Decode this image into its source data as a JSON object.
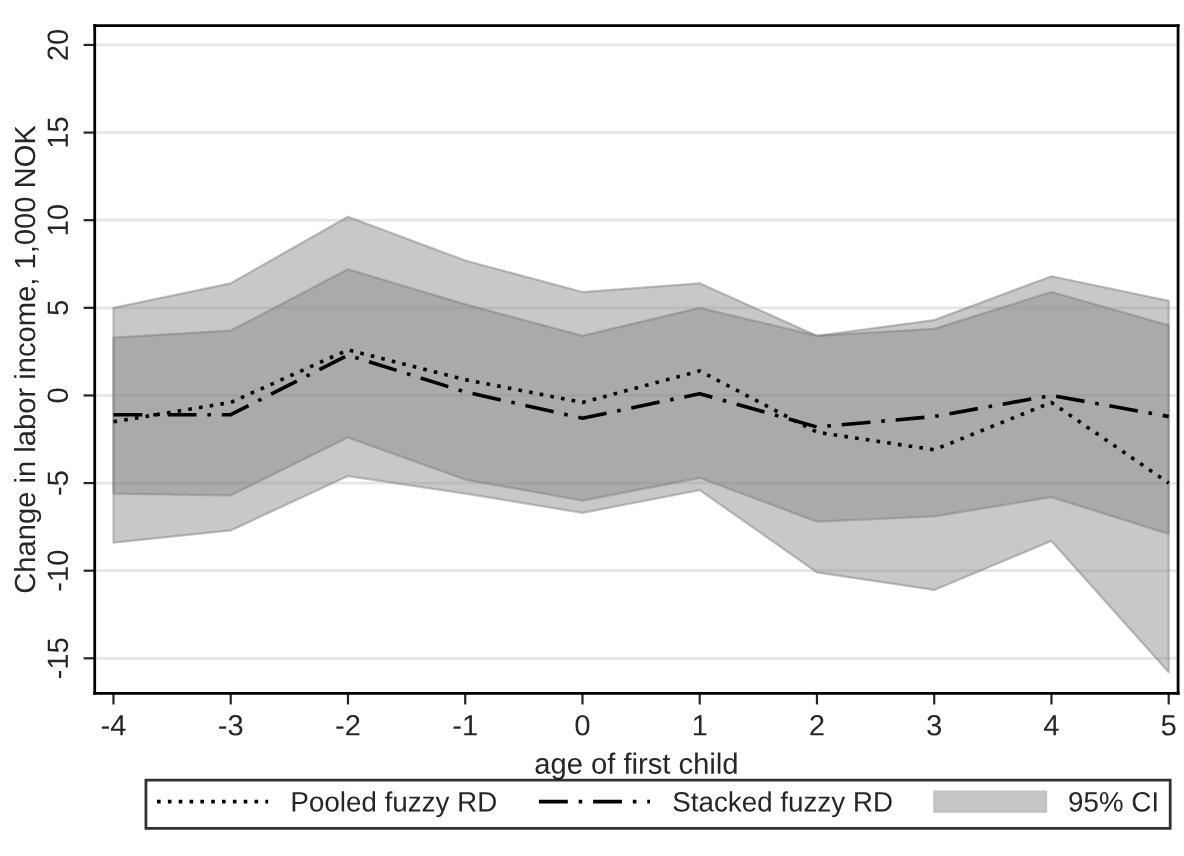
{
  "chart_data": {
    "type": "line",
    "xlabel": "age of first child",
    "ylabel": "Change in labor income, 1,000 NOK",
    "x": [
      -4,
      -3,
      -2,
      -1,
      0,
      1,
      2,
      3,
      4,
      5
    ],
    "series": [
      {
        "name": "Pooled fuzzy RD",
        "color": "#000000",
        "line_style": "dotted",
        "values": [
          -1.5,
          -0.4,
          2.6,
          0.9,
          -0.4,
          1.4,
          -2.1,
          -3.1,
          -0.4,
          -5.0
        ],
        "lower": [
          -8.4,
          -7.7,
          -4.6,
          -5.6,
          -6.7,
          -5.4,
          -10.1,
          -11.1,
          -8.3,
          -15.8
        ],
        "upper": [
          5.0,
          6.4,
          10.2,
          7.7,
          5.9,
          6.4,
          3.4,
          4.3,
          6.8,
          5.4
        ]
      },
      {
        "name": "Stacked fuzzy RD",
        "color": "#000000",
        "line_style": "dashdot",
        "values": [
          -1.1,
          -1.1,
          2.3,
          0.2,
          -1.3,
          0.1,
          -1.8,
          -1.2,
          0.0,
          -1.2
        ],
        "lower": [
          -5.6,
          -5.7,
          -2.4,
          -4.8,
          -6.0,
          -4.7,
          -7.2,
          -6.9,
          -5.8,
          -7.9
        ],
        "upper": [
          3.3,
          3.7,
          7.2,
          5.2,
          3.4,
          5.0,
          3.4,
          3.8,
          5.9,
          4.0
        ]
      }
    ],
    "annotations": [
      "95% CI"
    ],
    "xlim": [
      -4.16,
      5.08
    ],
    "ylim": [
      -17,
      21.1
    ],
    "xticks": [
      -4,
      -3,
      -2,
      -1,
      0,
      1,
      2,
      3,
      4,
      5
    ],
    "yticks": [
      {
        "value": -15,
        "label": "-15"
      },
      {
        "value": -10,
        "label": "-10"
      },
      {
        "value": -5,
        "label": "-5"
      },
      0,
      5,
      10,
      15,
      20
    ],
    "grid": "y",
    "legend": "bottom"
  }
}
